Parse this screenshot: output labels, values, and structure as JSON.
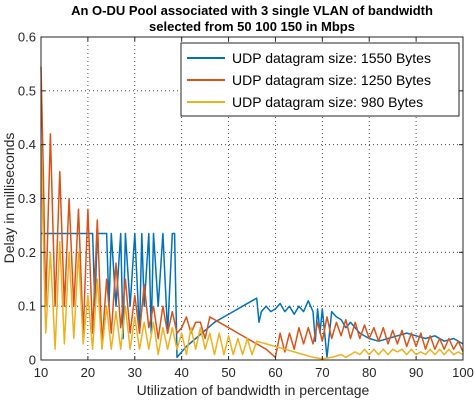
{
  "chart_data": {
    "type": "line",
    "title": [
      "An O-DU Pool associated with 3 single VLAN of bandwidth",
      "selected from  50  100  150 in Mbps"
    ],
    "xlabel": "Utilization of bandwidth in percentage",
    "ylabel": "Delay in milliseconds",
    "xlim": [
      10,
      100
    ],
    "ylim": [
      0,
      0.6
    ],
    "xticks": [
      10,
      20,
      30,
      40,
      50,
      60,
      70,
      80,
      90,
      100
    ],
    "yticks": [
      0,
      0.1,
      0.2,
      0.3,
      0.4,
      0.5,
      0.6
    ],
    "grid": true,
    "legend_position": "top-right",
    "series": [
      {
        "name": "UDP datagram size: 1550 Bytes",
        "color": "#0072BD",
        "points": [
          [
            10,
            0.235
          ],
          [
            11,
            0.235
          ],
          [
            12,
            0.235
          ],
          [
            13,
            0.235
          ],
          [
            14,
            0.235
          ],
          [
            15,
            0.235
          ],
          [
            16,
            0.235
          ],
          [
            17,
            0.235
          ],
          [
            18,
            0.235
          ],
          [
            19,
            0.235
          ],
          [
            20,
            0.235
          ],
          [
            21,
            0.235
          ],
          [
            21.5,
            0.1
          ],
          [
            22,
            0.235
          ],
          [
            23,
            0.235
          ],
          [
            24,
            0.235
          ],
          [
            24.5,
            0.1
          ],
          [
            25,
            0.235
          ],
          [
            26,
            0.1
          ],
          [
            27,
            0.235
          ],
          [
            27.5,
            0.04
          ],
          [
            28,
            0.235
          ],
          [
            29,
            0.1
          ],
          [
            30,
            0.235
          ],
          [
            31,
            0.05
          ],
          [
            31.5,
            0.235
          ],
          [
            32,
            0.1
          ],
          [
            33,
            0.235
          ],
          [
            33.5,
            0.05
          ],
          [
            34,
            0.235
          ],
          [
            35,
            0.1
          ],
          [
            36,
            0.235
          ],
          [
            37,
            0.05
          ],
          [
            38,
            0.235
          ],
          [
            38.5,
            0.235
          ],
          [
            39,
            0.005
          ],
          [
            41,
            0.025
          ],
          [
            43,
            0.04
          ],
          [
            45,
            0.055
          ],
          [
            47,
            0.07
          ],
          [
            49,
            0.08
          ],
          [
            51,
            0.09
          ],
          [
            53,
            0.1
          ],
          [
            55,
            0.11
          ],
          [
            56,
            0.115
          ],
          [
            56.5,
            0.07
          ],
          [
            57,
            0.09
          ],
          [
            58,
            0.1
          ],
          [
            59,
            0.09
          ],
          [
            60,
            0.095
          ],
          [
            61,
            0.105
          ],
          [
            62,
            0.09
          ],
          [
            63,
            0.1
          ],
          [
            64,
            0.085
          ],
          [
            65,
            0.1
          ],
          [
            66,
            0.09
          ],
          [
            67,
            0.11
          ],
          [
            68,
            0.09
          ],
          [
            68.5,
            0.035
          ],
          [
            69,
            0.095
          ],
          [
            69.5,
            0.05
          ],
          [
            70,
            0.095
          ],
          [
            71,
            0.005
          ],
          [
            72,
            0.09
          ],
          [
            73,
            0.08
          ],
          [
            74,
            0.075
          ],
          [
            75,
            0.06
          ],
          [
            76,
            0.07
          ],
          [
            78,
            0.05
          ],
          [
            80,
            0.04
          ],
          [
            82,
            0.035
          ],
          [
            84,
            0.04
          ],
          [
            86,
            0.045
          ],
          [
            88,
            0.05
          ],
          [
            90,
            0.045
          ],
          [
            92,
            0.04
          ],
          [
            94,
            0.045
          ],
          [
            96,
            0.035
          ],
          [
            98,
            0.04
          ],
          [
            100,
            0.03
          ]
        ]
      },
      {
        "name": "UDP datagram size: 1250 Bytes",
        "color": "#D95319",
        "points": [
          [
            10,
            0.545
          ],
          [
            10.5,
            0.35
          ],
          [
            11,
            0.1
          ],
          [
            12,
            0.42
          ],
          [
            13,
            0.1
          ],
          [
            14,
            0.35
          ],
          [
            15,
            0.1
          ],
          [
            16,
            0.3
          ],
          [
            17,
            0.1
          ],
          [
            18,
            0.28
          ],
          [
            19,
            0.05
          ],
          [
            20,
            0.28
          ],
          [
            21,
            0.05
          ],
          [
            22,
            0.26
          ],
          [
            23,
            0.03
          ],
          [
            24,
            0.15
          ],
          [
            25,
            0.05
          ],
          [
            26,
            0.18
          ],
          [
            27,
            0.06
          ],
          [
            28,
            0.15
          ],
          [
            29,
            0.05
          ],
          [
            30,
            0.12
          ],
          [
            31,
            0.05
          ],
          [
            32,
            0.14
          ],
          [
            33,
            0.06
          ],
          [
            34,
            0.1
          ],
          [
            35,
            0.04
          ],
          [
            36,
            0.1
          ],
          [
            37,
            0.05
          ],
          [
            38,
            0.09
          ],
          [
            39,
            0.05
          ],
          [
            40,
            0.06
          ],
          [
            41,
            0.08
          ],
          [
            42,
            0.05
          ],
          [
            43,
            0.07
          ],
          [
            44,
            0.07
          ],
          [
            45,
            0.04
          ],
          [
            46,
            0.08
          ],
          [
            48,
            0.07
          ],
          [
            50,
            0.06
          ],
          [
            52,
            0.05
          ],
          [
            54,
            0.04
          ],
          [
            56,
            0.03
          ],
          [
            58,
            0.02
          ],
          [
            60,
            0.005
          ],
          [
            61,
            0.05
          ],
          [
            62,
            0.015
          ],
          [
            63,
            0.05
          ],
          [
            64,
            0.02
          ],
          [
            65,
            0.06
          ],
          [
            66,
            0.03
          ],
          [
            67,
            0.06
          ],
          [
            68,
            0.03
          ],
          [
            69,
            0.07
          ],
          [
            70,
            0.035
          ],
          [
            71,
            0.08
          ],
          [
            72,
            0.04
          ],
          [
            73,
            0.07
          ],
          [
            74,
            0.045
          ],
          [
            75,
            0.075
          ],
          [
            76,
            0.04
          ],
          [
            77,
            0.07
          ],
          [
            78,
            0.04
          ],
          [
            79,
            0.065
          ],
          [
            80,
            0.04
          ],
          [
            81,
            0.06
          ],
          [
            82,
            0.035
          ],
          [
            83,
            0.06
          ],
          [
            84,
            0.03
          ],
          [
            85,
            0.055
          ],
          [
            86,
            0.03
          ],
          [
            87,
            0.055
          ],
          [
            88,
            0.025
          ],
          [
            89,
            0.05
          ],
          [
            90,
            0.025
          ],
          [
            91,
            0.05
          ],
          [
            92,
            0.02
          ],
          [
            93,
            0.045
          ],
          [
            94,
            0.02
          ],
          [
            95,
            0.04
          ],
          [
            96,
            0.02
          ],
          [
            97,
            0.04
          ],
          [
            98,
            0.02
          ],
          [
            99,
            0.035
          ],
          [
            100,
            0.015
          ]
        ]
      },
      {
        "name": "UDP datagram size: 980 Bytes",
        "color": "#EDB120",
        "points": [
          [
            10,
            0.4
          ],
          [
            11,
            0.05
          ],
          [
            12,
            0.2
          ],
          [
            13,
            0.02
          ],
          [
            14,
            0.22
          ],
          [
            15,
            0.03
          ],
          [
            16,
            0.2
          ],
          [
            17,
            0.04
          ],
          [
            18,
            0.2
          ],
          [
            19,
            0.03
          ],
          [
            20,
            0.12
          ],
          [
            21,
            0.02
          ],
          [
            22,
            0.15
          ],
          [
            23,
            0.02
          ],
          [
            24,
            0.1
          ],
          [
            25,
            0.02
          ],
          [
            26,
            0.09
          ],
          [
            27,
            0.02
          ],
          [
            28,
            0.1
          ],
          [
            29,
            0.02
          ],
          [
            30,
            0.08
          ],
          [
            31,
            0.02
          ],
          [
            32,
            0.07
          ],
          [
            33,
            0.02
          ],
          [
            34,
            0.07
          ],
          [
            35,
            0.01
          ],
          [
            36,
            0.06
          ],
          [
            37,
            0.02
          ],
          [
            38,
            0.06
          ],
          [
            39,
            0.02
          ],
          [
            40,
            0.05
          ],
          [
            41,
            0.01
          ],
          [
            42,
            0.06
          ],
          [
            43,
            0.02
          ],
          [
            44,
            0.06
          ],
          [
            45,
            0.02
          ],
          [
            46,
            0.05
          ],
          [
            47,
            0.01
          ],
          [
            48,
            0.05
          ],
          [
            49,
            0.01
          ],
          [
            50,
            0.045
          ],
          [
            51,
            0.01
          ],
          [
            52,
            0.04
          ],
          [
            53,
            0.01
          ],
          [
            54,
            0.04
          ],
          [
            55,
            0.01
          ],
          [
            56,
            0.035
          ],
          [
            58,
            0.03
          ],
          [
            60,
            0.025
          ],
          [
            62,
            0.02
          ],
          [
            64,
            0.015
          ],
          [
            66,
            0.01
          ],
          [
            68,
            0.005
          ],
          [
            70,
            0.002
          ],
          [
            72,
            0.005
          ],
          [
            74,
            0.01
          ],
          [
            75,
            0.005
          ],
          [
            76,
            0.01
          ],
          [
            77,
            0.015
          ],
          [
            78,
            0.01
          ],
          [
            79,
            0.02
          ],
          [
            80,
            0.01
          ],
          [
            81,
            0.02
          ],
          [
            82,
            0.01
          ],
          [
            83,
            0.02
          ],
          [
            84,
            0.01
          ],
          [
            85,
            0.02
          ],
          [
            86,
            0.015
          ],
          [
            87,
            0.02
          ],
          [
            88,
            0.01
          ],
          [
            89,
            0.02
          ],
          [
            90,
            0.01
          ],
          [
            91,
            0.015
          ],
          [
            92,
            0.01
          ],
          [
            93,
            0.02
          ],
          [
            94,
            0.01
          ],
          [
            95,
            0.02
          ],
          [
            96,
            0.01
          ],
          [
            97,
            0.02
          ],
          [
            98,
            0.01
          ],
          [
            99,
            0.015
          ],
          [
            100,
            0.01
          ]
        ]
      }
    ]
  }
}
